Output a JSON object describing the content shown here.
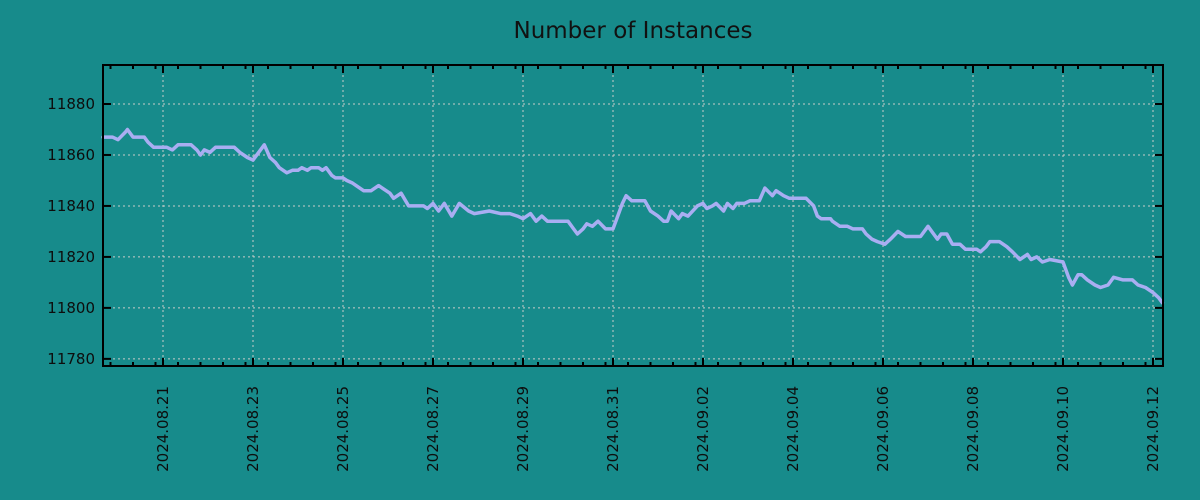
{
  "title": "Number of Instances",
  "colors": {
    "background": "#178b8b",
    "line": "#a9aef2",
    "grid": "#c9cdc9",
    "axis": "#000000",
    "text": "#0d0d0d"
  },
  "chart_data": {
    "type": "line",
    "title": "Number of Instances",
    "xlabel": "",
    "ylabel": "",
    "grid": true,
    "legend": "none",
    "ylim": [
      11777.2,
      11895.3
    ],
    "xlim": [
      "2024-08-19T16:00",
      "2024-09-12T05:20"
    ],
    "y_ticks": [
      {
        "value": 11780,
        "label": "11780"
      },
      {
        "value": 11800,
        "label": "11800"
      },
      {
        "value": 11820,
        "label": "11820"
      },
      {
        "value": 11840,
        "label": "11840"
      },
      {
        "value": 11860,
        "label": "11860"
      },
      {
        "value": 11880,
        "label": "11880"
      }
    ],
    "x_ticks": [
      {
        "date": "2024-08-21",
        "label": "2024.08.21"
      },
      {
        "date": "2024-08-23",
        "label": "2024.08.23"
      },
      {
        "date": "2024-08-25",
        "label": "2024.08.25"
      },
      {
        "date": "2024-08-27",
        "label": "2024.08.27"
      },
      {
        "date": "2024-08-29",
        "label": "2024.08.29"
      },
      {
        "date": "2024-08-31",
        "label": "2024.08.31"
      },
      {
        "date": "2024-09-02",
        "label": "2024.09.02"
      },
      {
        "date": "2024-09-04",
        "label": "2024.09.04"
      },
      {
        "date": "2024-09-06",
        "label": "2024.09.06"
      },
      {
        "date": "2024-09-08",
        "label": "2024.09.08"
      },
      {
        "date": "2024-09-10",
        "label": "2024.09.10"
      },
      {
        "date": "2024-09-12",
        "label": "2024.09.12"
      }
    ],
    "minor_tick_hours": [
      8,
      20
    ],
    "series": [
      {
        "name": "Number of Instances",
        "color": "#a9aef2",
        "points": [
          [
            "2024-08-19T16:00",
            11867
          ],
          [
            "2024-08-19T21:00",
            11867
          ],
          [
            "2024-08-20T00:00",
            11866
          ],
          [
            "2024-08-20T04:00",
            11869
          ],
          [
            "2024-08-20T05:00",
            11870
          ],
          [
            "2024-08-20T08:00",
            11867
          ],
          [
            "2024-08-20T14:00",
            11867
          ],
          [
            "2024-08-20T16:00",
            11865
          ],
          [
            "2024-08-20T19:00",
            11863
          ],
          [
            "2024-08-21T02:00",
            11863
          ],
          [
            "2024-08-21T05:00",
            11862
          ],
          [
            "2024-08-21T08:00",
            11864
          ],
          [
            "2024-08-21T15:00",
            11864
          ],
          [
            "2024-08-21T18:00",
            11862
          ],
          [
            "2024-08-21T20:00",
            11860
          ],
          [
            "2024-08-21T22:00",
            11862
          ],
          [
            "2024-08-22T01:00",
            11861
          ],
          [
            "2024-08-22T04:00",
            11863
          ],
          [
            "2024-08-22T14:00",
            11863
          ],
          [
            "2024-08-22T17:00",
            11861
          ],
          [
            "2024-08-22T21:00",
            11859
          ],
          [
            "2024-08-23T00:00",
            11858
          ],
          [
            "2024-08-23T06:00",
            11864
          ],
          [
            "2024-08-23T09:00",
            11859
          ],
          [
            "2024-08-23T12:00",
            11857
          ],
          [
            "2024-08-23T14:00",
            11855
          ],
          [
            "2024-08-23T18:00",
            11853
          ],
          [
            "2024-08-23T21:00",
            11854
          ],
          [
            "2024-08-24T00:00",
            11854
          ],
          [
            "2024-08-24T02:00",
            11855
          ],
          [
            "2024-08-24T05:00",
            11854
          ],
          [
            "2024-08-24T07:00",
            11855
          ],
          [
            "2024-08-24T11:00",
            11855
          ],
          [
            "2024-08-24T13:00",
            11854
          ],
          [
            "2024-08-24T15:00",
            11855
          ],
          [
            "2024-08-24T18:00",
            11852
          ],
          [
            "2024-08-24T20:00",
            11851
          ],
          [
            "2024-08-25T00:00",
            11851
          ],
          [
            "2024-08-25T02:00",
            11850
          ],
          [
            "2024-08-25T05:00",
            11849
          ],
          [
            "2024-08-25T07:00",
            11848
          ],
          [
            "2024-08-25T11:00",
            11846
          ],
          [
            "2024-08-25T15:00",
            11846
          ],
          [
            "2024-08-25T19:00",
            11848
          ],
          [
            "2024-08-26T01:00",
            11845
          ],
          [
            "2024-08-26T03:00",
            11843
          ],
          [
            "2024-08-26T07:00",
            11845
          ],
          [
            "2024-08-26T11:00",
            11840
          ],
          [
            "2024-08-26T19:00",
            11840
          ],
          [
            "2024-08-26T21:00",
            11839
          ],
          [
            "2024-08-27T00:00",
            11841
          ],
          [
            "2024-08-27T03:00",
            11838
          ],
          [
            "2024-08-27T06:00",
            11841
          ],
          [
            "2024-08-27T10:00",
            11836
          ],
          [
            "2024-08-27T14:00",
            11841
          ],
          [
            "2024-08-27T19:00",
            11838
          ],
          [
            "2024-08-27T22:00",
            11837
          ],
          [
            "2024-08-28T06:00",
            11838
          ],
          [
            "2024-08-28T12:00",
            11837
          ],
          [
            "2024-08-28T17:00",
            11837
          ],
          [
            "2024-08-28T21:00",
            11836
          ],
          [
            "2024-08-29T00:00",
            11835
          ],
          [
            "2024-08-29T04:00",
            11837
          ],
          [
            "2024-08-29T07:00",
            11834
          ],
          [
            "2024-08-29T10:00",
            11836
          ],
          [
            "2024-08-29T13:00",
            11834
          ],
          [
            "2024-08-29T21:00",
            11834
          ],
          [
            "2024-08-30T00:00",
            11834
          ],
          [
            "2024-08-30T03:00",
            11831
          ],
          [
            "2024-08-30T05:00",
            11829
          ],
          [
            "2024-08-30T08:00",
            11831
          ],
          [
            "2024-08-30T10:00",
            11833
          ],
          [
            "2024-08-30T13:00",
            11832
          ],
          [
            "2024-08-30T16:00",
            11834
          ],
          [
            "2024-08-30T20:00",
            11831
          ],
          [
            "2024-08-31T00:00",
            11831
          ],
          [
            "2024-08-31T02:00",
            11835
          ],
          [
            "2024-08-31T05:00",
            11841
          ],
          [
            "2024-08-31T07:00",
            11844
          ],
          [
            "2024-08-31T10:00",
            11842
          ],
          [
            "2024-08-31T15:00",
            11842
          ],
          [
            "2024-08-31T17:00",
            11842
          ],
          [
            "2024-08-31T20:00",
            11838
          ],
          [
            "2024-09-01T00:00",
            11836
          ],
          [
            "2024-09-01T03:00",
            11834
          ],
          [
            "2024-09-01T05:00",
            11834
          ],
          [
            "2024-09-01T07:00",
            11838
          ],
          [
            "2024-09-01T11:00",
            11835
          ],
          [
            "2024-09-01T13:00",
            11837
          ],
          [
            "2024-09-01T16:00",
            11836
          ],
          [
            "2024-09-01T21:00",
            11840
          ],
          [
            "2024-09-02T00:00",
            11841
          ],
          [
            "2024-09-02T02:00",
            11839
          ],
          [
            "2024-09-02T05:00",
            11840
          ],
          [
            "2024-09-02T07:00",
            11841
          ],
          [
            "2024-09-02T11:00",
            11838
          ],
          [
            "2024-09-02T13:00",
            11841
          ],
          [
            "2024-09-02T16:00",
            11839
          ],
          [
            "2024-09-02T18:00",
            11841
          ],
          [
            "2024-09-02T22:00",
            11841
          ],
          [
            "2024-09-03T01:00",
            11842
          ],
          [
            "2024-09-03T06:00",
            11842
          ],
          [
            "2024-09-03T09:00",
            11847
          ],
          [
            "2024-09-03T13:00",
            11844
          ],
          [
            "2024-09-03T15:00",
            11846
          ],
          [
            "2024-09-03T19:00",
            11844
          ],
          [
            "2024-09-03T22:00",
            11843
          ],
          [
            "2024-09-04T07:00",
            11843
          ],
          [
            "2024-09-04T11:00",
            11840
          ],
          [
            "2024-09-04T13:00",
            11836
          ],
          [
            "2024-09-04T15:00",
            11835
          ],
          [
            "2024-09-04T20:00",
            11835
          ],
          [
            "2024-09-04T21:00",
            11834
          ],
          [
            "2024-09-05T01:00",
            11832
          ],
          [
            "2024-09-05T05:00",
            11832
          ],
          [
            "2024-09-05T08:00",
            11831
          ],
          [
            "2024-09-05T13:00",
            11831
          ],
          [
            "2024-09-05T15:00",
            11829
          ],
          [
            "2024-09-05T18:00",
            11827
          ],
          [
            "2024-09-05T21:00",
            11826
          ],
          [
            "2024-09-06T01:00",
            11825
          ],
          [
            "2024-09-06T04:00",
            11827
          ],
          [
            "2024-09-06T08:00",
            11830
          ],
          [
            "2024-09-06T12:00",
            11828
          ],
          [
            "2024-09-06T20:00",
            11828
          ],
          [
            "2024-09-07T00:00",
            11832
          ],
          [
            "2024-09-07T05:00",
            11827
          ],
          [
            "2024-09-07T07:00",
            11829
          ],
          [
            "2024-09-07T10:00",
            11829
          ],
          [
            "2024-09-07T13:00",
            11825
          ],
          [
            "2024-09-07T17:00",
            11825
          ],
          [
            "2024-09-07T20:00",
            11823
          ],
          [
            "2024-09-08T02:00",
            11823
          ],
          [
            "2024-09-08T04:00",
            11822
          ],
          [
            "2024-09-08T07:00",
            11824
          ],
          [
            "2024-09-08T09:00",
            11826
          ],
          [
            "2024-09-08T14:00",
            11826
          ],
          [
            "2024-09-08T18:00",
            11824
          ],
          [
            "2024-09-08T21:00",
            11822
          ],
          [
            "2024-09-09T01:00",
            11819
          ],
          [
            "2024-09-09T05:00",
            11821
          ],
          [
            "2024-09-09T07:00",
            11819
          ],
          [
            "2024-09-09T10:00",
            11820
          ],
          [
            "2024-09-09T13:00",
            11818
          ],
          [
            "2024-09-09T17:00",
            11819
          ],
          [
            "2024-09-10T00:00",
            11818
          ],
          [
            "2024-09-10T03:00",
            11812
          ],
          [
            "2024-09-10T05:00",
            11809
          ],
          [
            "2024-09-10T08:00",
            11813
          ],
          [
            "2024-09-10T10:00",
            11813
          ],
          [
            "2024-09-10T13:00",
            11811
          ],
          [
            "2024-09-10T17:00",
            11809
          ],
          [
            "2024-09-10T20:00",
            11808
          ],
          [
            "2024-09-11T00:00",
            11809
          ],
          [
            "2024-09-11T03:00",
            11812
          ],
          [
            "2024-09-11T08:00",
            11811
          ],
          [
            "2024-09-11T13:00",
            11811
          ],
          [
            "2024-09-11T16:00",
            11809
          ],
          [
            "2024-09-11T20:00",
            11808
          ],
          [
            "2024-09-12T00:00",
            11806
          ],
          [
            "2024-09-12T03:00",
            11804
          ],
          [
            "2024-09-12T05:00",
            11802
          ]
        ]
      }
    ]
  }
}
